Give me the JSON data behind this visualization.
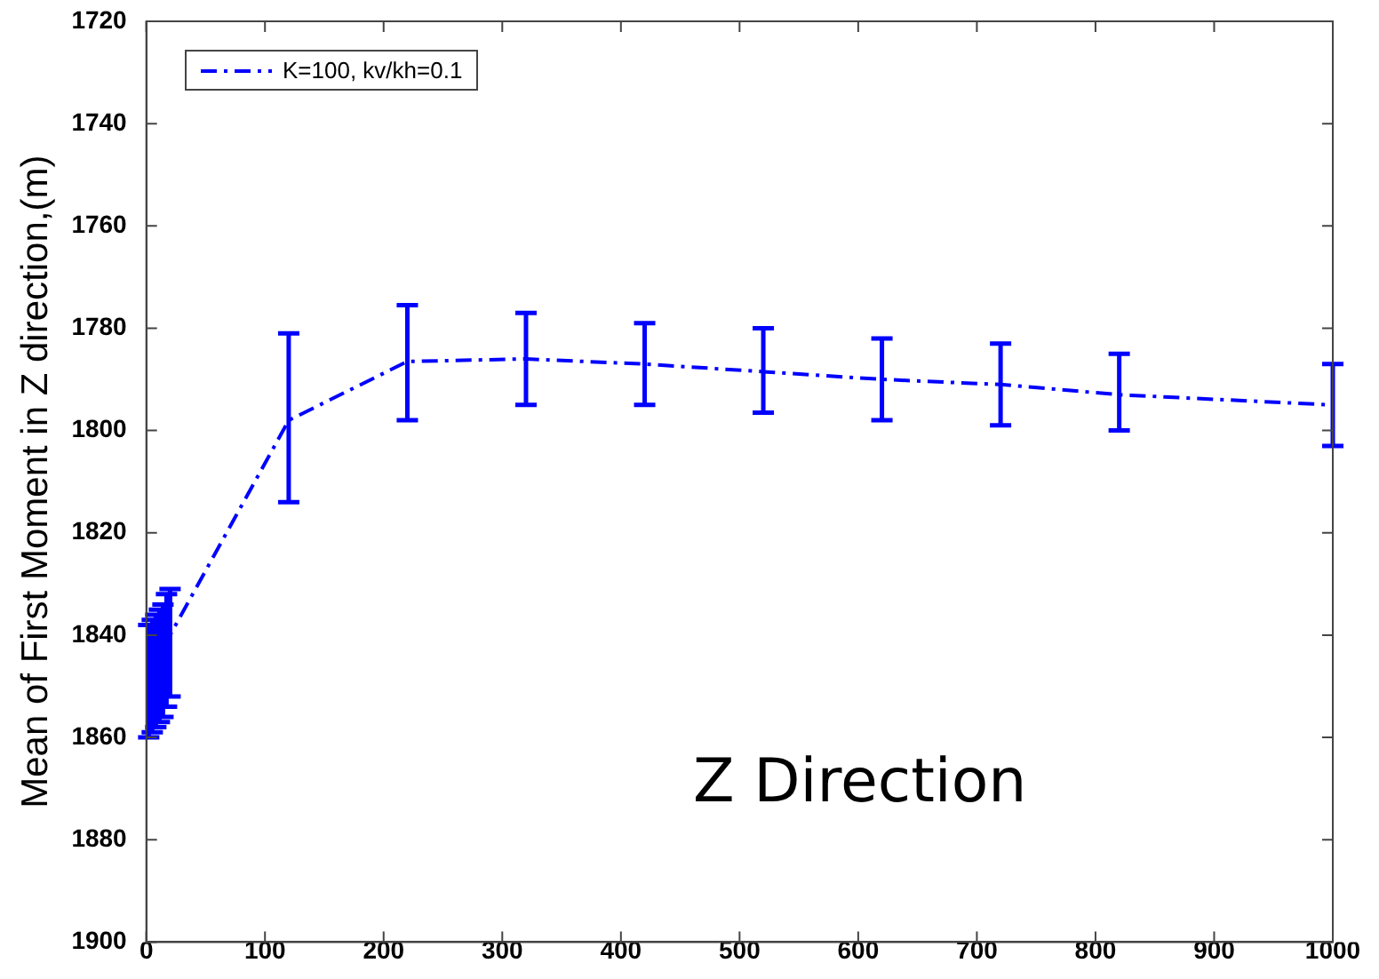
{
  "chart_data": {
    "type": "line",
    "ylabel": "Mean of First Moment in Z direction,(m)",
    "annotations": [
      "Z Direction"
    ],
    "x": [
      2,
      5,
      8,
      11,
      14,
      17,
      20,
      120,
      220,
      320,
      420,
      520,
      620,
      720,
      820,
      1000
    ],
    "series": [
      {
        "name": "K=100, kv/kh=0.1",
        "color": "#0000ff",
        "values": [
          1848,
          1847,
          1846,
          1845,
          1843,
          1842,
          1840,
          1798,
          1786.5,
          1786,
          1787,
          1788.5,
          1790,
          1791,
          1793,
          1795
        ],
        "errors": [
          [
            1838,
            1860
          ],
          [
            1837,
            1859
          ],
          [
            1836,
            1858
          ],
          [
            1835,
            1857
          ],
          [
            1834,
            1856
          ],
          [
            1832,
            1854
          ],
          [
            1831,
            1852
          ],
          [
            1781,
            1814
          ],
          [
            1775.5,
            1798
          ],
          [
            1777,
            1795
          ],
          [
            1779,
            1795
          ],
          [
            1780,
            1796.5
          ],
          [
            1782,
            1798
          ],
          [
            1783,
            1799
          ],
          [
            1785,
            1800
          ],
          [
            1787,
            1803
          ]
        ]
      }
    ],
    "xlim": [
      0,
      1000
    ],
    "xticks": [
      0,
      100,
      200,
      300,
      400,
      500,
      600,
      700,
      800,
      900,
      1000
    ],
    "ylim": [
      1900,
      1720
    ],
    "yticks": [
      1720,
      1740,
      1760,
      1780,
      1800,
      1820,
      1840,
      1860,
      1880,
      1900
    ],
    "grid": false,
    "legend": "top left",
    "marker": "none",
    "line_style": "dashed"
  }
}
